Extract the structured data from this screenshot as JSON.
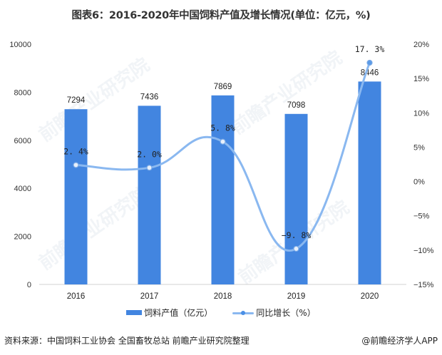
{
  "title": "图表6：2016-2020年中国饲料产值及增长情况(单位：亿元，%)",
  "legend": {
    "bar_label": "饲料产值（亿元）",
    "line_label": "同比增长（%）"
  },
  "footer": {
    "source": "资料来源：中国饲料工业协会 全国畜牧总站 前瞻产业研究院整理",
    "credit": "@前瞻经济学人APP"
  },
  "watermark": "前瞻产业研究院",
  "colors": {
    "bar": "#4285e0",
    "line": "#8ab8f0",
    "marker": "#7aa9e6"
  },
  "chart_data": {
    "type": "bar",
    "title": "图表6：2016-2020年中国饲料产值及增长情况(单位：亿元，%)",
    "categories": [
      "2016",
      "2017",
      "2018",
      "2019",
      "2020"
    ],
    "series": [
      {
        "name": "饲料产值（亿元）",
        "type": "bar",
        "axis": "left",
        "values": [
          7294,
          7436,
          7869,
          7098,
          8446
        ]
      },
      {
        "name": "同比增长（%）",
        "type": "line",
        "axis": "right",
        "values": [
          2.4,
          2.0,
          5.8,
          -9.8,
          17.3
        ]
      }
    ],
    "xlabel": "",
    "ylabel": "",
    "ylim": [
      0,
      10000
    ],
    "y_ticks": [
      "0",
      "2000",
      "4000",
      "6000",
      "8000",
      "10000"
    ],
    "y2lim": [
      -15,
      20
    ],
    "y2_ticks": [
      "-15%",
      "-10%",
      "-5%",
      "0%",
      "5%",
      "10%",
      "15%",
      "20%"
    ],
    "bar_labels": [
      "7294",
      "7436",
      "7869",
      "7098",
      "8446"
    ],
    "line_labels": [
      "2.4%",
      "2.0%",
      "5.8%",
      "-9.8%",
      "17.3%"
    ],
    "grid": false,
    "legend_position": "bottom"
  }
}
